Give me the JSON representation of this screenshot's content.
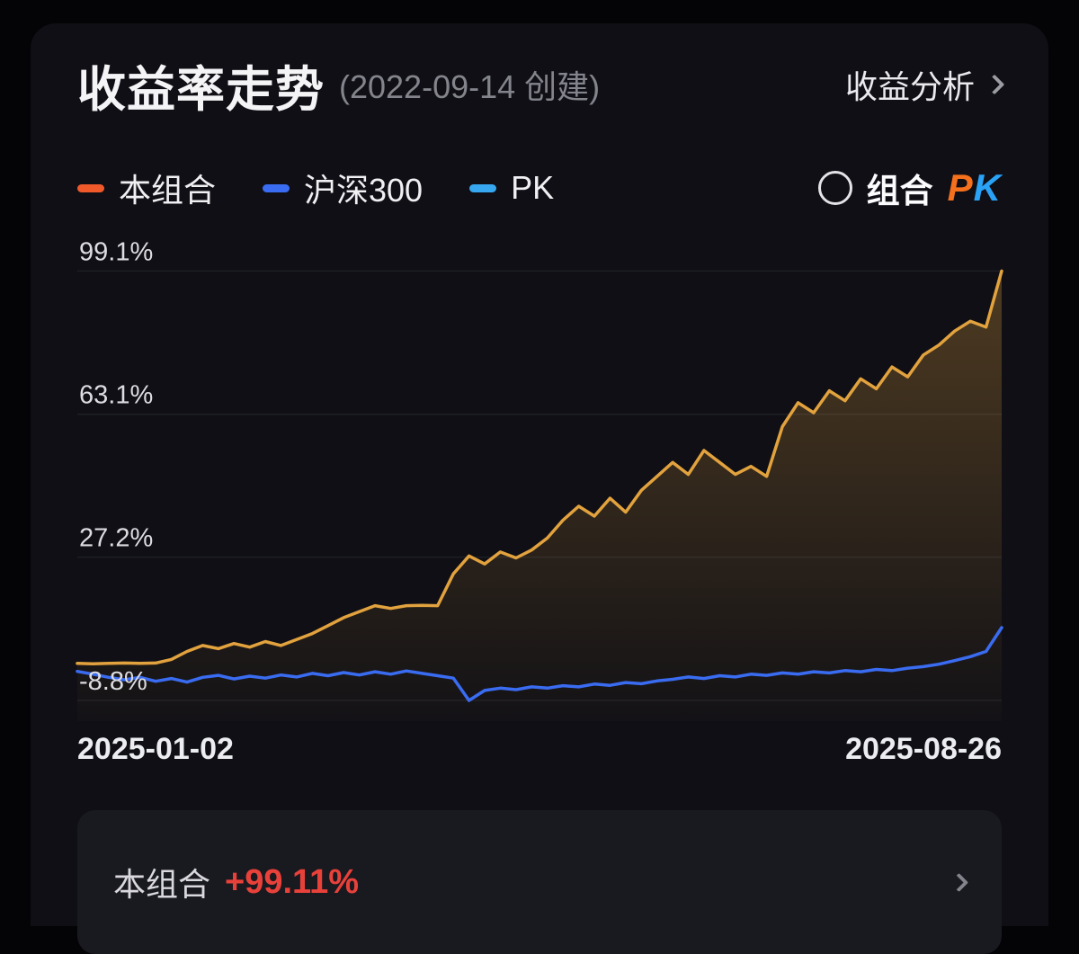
{
  "header": {
    "title": "收益率走势",
    "created": "(2022-09-14 创建)",
    "analysis_link": "收益分析"
  },
  "pk_toggle": {
    "prefix": "组合",
    "p": "P",
    "k": "K",
    "p_color": "#f4701d",
    "k_color": "#2aa2f6"
  },
  "chart_data": {
    "type": "line",
    "title": "收益率走势",
    "grid": "horizontal-faint",
    "legend_position": "top-left",
    "x_axis": {
      "start_label": "2025-01-02",
      "end_label": "2025-08-26"
    },
    "ylim": [
      -14,
      108
    ],
    "y_ticks": [
      {
        "value": 99.1,
        "label": "99.1%"
      },
      {
        "value": 63.1,
        "label": "63.1%"
      },
      {
        "value": 27.2,
        "label": "27.2%"
      },
      {
        "value": -8.8,
        "label": "-8.8%"
      }
    ],
    "series": [
      {
        "name": "本组合",
        "color": "#e2a23e",
        "legend_color": "#f0592a",
        "area": true,
        "values": [
          0.5,
          0.4,
          0.5,
          0.6,
          0.5,
          0.6,
          1.5,
          3.5,
          5.0,
          4.2,
          5.5,
          4.6,
          6.0,
          5.0,
          6.5,
          8.0,
          10.0,
          12.0,
          13.5,
          15.0,
          14.3,
          15.0,
          15.1,
          15.0,
          23.0,
          27.5,
          25.5,
          28.5,
          27.0,
          29.0,
          32.0,
          36.5,
          40.0,
          37.5,
          42.0,
          38.5,
          44.0,
          47.5,
          51.0,
          48.0,
          54.0,
          51.0,
          48.0,
          50.0,
          47.5,
          60.0,
          66.0,
          63.5,
          69.0,
          66.5,
          72.0,
          69.5,
          75.0,
          72.5,
          78.0,
          80.5,
          84.0,
          86.5,
          85.0,
          99.1
        ]
      },
      {
        "name": "沪深300",
        "color": "#3a6cf2",
        "legend_color": "#3a6cf2",
        "area": false,
        "values": [
          -1.5,
          -2.2,
          -3.0,
          -3.6,
          -3.0,
          -4.0,
          -3.3,
          -4.2,
          -3.0,
          -2.5,
          -3.4,
          -2.7,
          -3.2,
          -2.4,
          -2.9,
          -2.0,
          -2.6,
          -1.8,
          -2.4,
          -1.6,
          -2.2,
          -1.4,
          -2.0,
          -2.6,
          -3.2,
          -8.8,
          -6.3,
          -5.7,
          -6.1,
          -5.4,
          -5.7,
          -5.1,
          -5.4,
          -4.7,
          -5.0,
          -4.3,
          -4.6,
          -3.9,
          -3.5,
          -2.9,
          -3.3,
          -2.6,
          -2.9,
          -2.2,
          -2.5,
          -1.9,
          -2.2,
          -1.6,
          -1.9,
          -1.3,
          -1.6,
          -1.0,
          -1.3,
          -0.7,
          -0.3,
          0.3,
          1.2,
          2.2,
          3.5,
          9.5
        ]
      },
      {
        "name": "PK",
        "color": "#37a7f0",
        "legend_color": "#37a7f0",
        "area": false,
        "values": []
      }
    ]
  },
  "footer": {
    "label": "本组合",
    "value": "+99.11%",
    "value_color": "#e8413a"
  }
}
